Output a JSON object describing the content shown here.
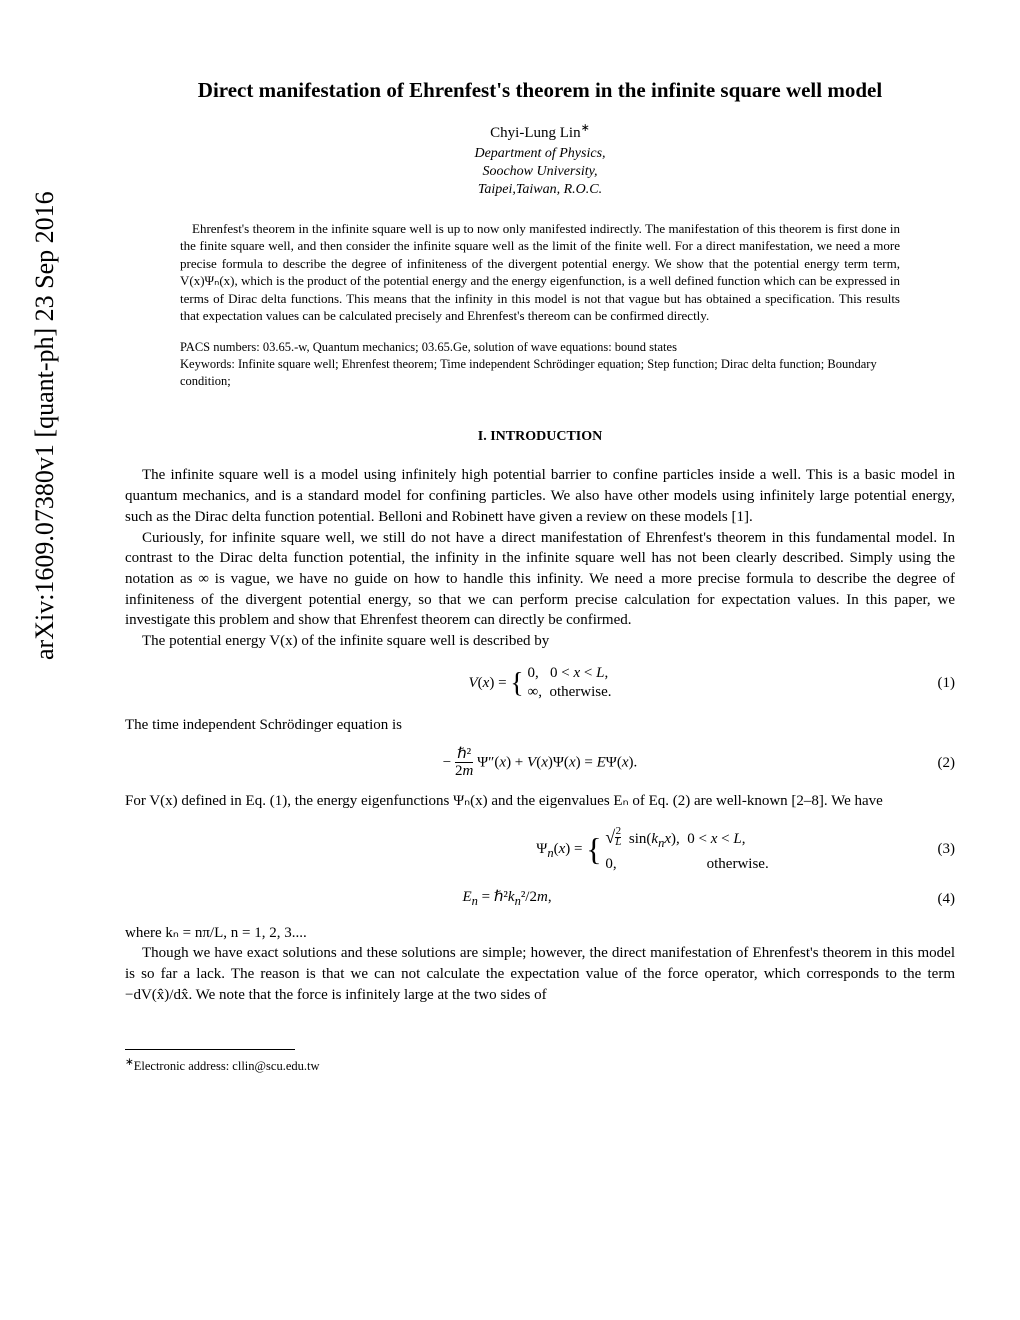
{
  "arxiv_stamp": "arXiv:1609.07380v1  [quant-ph]  23 Sep 2016",
  "title": "Direct manifestation of Ehrenfest's theorem in the infinite square well model",
  "author": "Chyi-Lung Lin",
  "author_marker": "∗",
  "affiliation": {
    "line1": "Department  of  Physics,",
    "line2": "Soochow   University,",
    "line3": "Taipei,Taiwan,   R.O.C."
  },
  "abstract": "Ehrenfest's theorem in the infinite square well is up to now only manifested indirectly. The manifestation of this theorem is first done in the finite square well, and then consider the infinite square well as the limit of the finite well. For a direct manifestation, we need a more precise formula to describe the degree of infiniteness of the divergent potential energy. We show that the potential energy term term, V(x)Ψₙ(x), which is the product of the potential energy and the energy eigenfunction, is a well defined function which can be expressed in terms of Dirac delta functions. This means that the infinity in this model is not that vague but has obtained a specification. This results that expectation values can be calculated precisely and Ehrenfest's thereom can be confirmed directly.",
  "pacs": "PACS numbers: 03.65.-w, Quantum mechanics; 03.65.Ge, solution of wave equations: bound states",
  "keywords": "Keywords: Infinite square well; Ehrenfest theorem; Time independent Schrödinger equation; Step function; Dirac delta function; Boundary condition;",
  "section_heading": "I.    INTRODUCTION",
  "para1": "The infinite square well is a model using infinitely high potential barrier to confine particles inside a well. This is a basic model in quantum mechanics, and is a standard model for confining particles. We also have other models using infinitely large potential energy, such as the Dirac delta function potential. Belloni and Robinett have given a review on these models [1].",
  "para2": "Curiously, for infinite square well, we still do not have a direct manifestation of Ehrenfest's theorem in this fundamental model. In contrast to the Dirac delta function potential, the infinity in the infinite square well has not been clearly described. Simply using the notation as ∞ is vague, we have no guide on how to handle this infinity. We need a more precise formula to describe the degree of infiniteness of the divergent potential energy, so that we can perform precise calculation for expectation values. In this paper, we investigate this problem and show that Ehrenfest theorem can directly be confirmed.",
  "para3_intro": "The potential energy V(x) of the infinite square well is described by",
  "eq1_html": "<span class='math-i'>V</span>(<span class='math-i'>x</span>) = <span style='font-size:28px;display:inline-block;vertical-align:middle;line-height:0.9'>{</span> <span style='display:inline-block;vertical-align:middle;text-align:left;line-height:1.3'>0, &nbsp;&nbsp;0 &lt; <span class='math-i'>x</span> &lt; <span class='math-i'>L</span>,<br>∞, &nbsp;otherwise.</span>",
  "eq1_num": "(1)",
  "para4": "The time independent Schrödinger equation is",
  "eq2_html": "− <span style='display:inline-block;vertical-align:middle;text-align:center;line-height:1'><span style='display:block;border-bottom:1px solid #000;padding:0 2px'>ℏ²</span><span style='display:block;padding-top:1px'>2<span class='math-i'>m</span></span></span> Ψ″(<span class='math-i'>x</span>) + <span class='math-i'>V</span>(<span class='math-i'>x</span>)Ψ(<span class='math-i'>x</span>) = <span class='math-i'>E</span>Ψ(<span class='math-i'>x</span>).",
  "eq2_num": "(2)",
  "para5": "For V(x) defined in Eq. (1), the energy eigenfunctions Ψₙ(x) and the eigenvalues Eₙ of Eq. (2) are well-known [2–8]. We have",
  "eq3_html": "Ψ<sub><span class='math-i'>n</span></sub>(<span class='math-i'>x</span>) = <span style='font-size:32px;display:inline-block;vertical-align:middle;line-height:0.85'>{</span> <span style='display:inline-block;vertical-align:middle;text-align:left;line-height:1.5'><span style='font-size:18px'>√</span><span style='text-decoration:overline;display:inline-block;vertical-align:middle;'><span style='display:inline-block;text-align:center;line-height:0.9;font-size:11px'><span style='display:block;border-bottom:1px solid #000'>2</span><span style='display:block;font-style:italic'>L</span></span></span>&nbsp; sin(<span class='math-i'>k<sub>n</sub>x</span>), &nbsp;0 &lt; <span class='math-i'>x</span> &lt; <span class='math-i'>L</span>,<br>0,&nbsp;&nbsp;&nbsp;&nbsp;&nbsp;&nbsp;&nbsp;&nbsp;&nbsp;&nbsp;&nbsp;&nbsp;&nbsp;&nbsp;&nbsp;&nbsp;&nbsp;&nbsp;&nbsp;&nbsp;&nbsp;&nbsp;&nbsp;&nbsp;otherwise.</span>",
  "eq3_num": "(3)",
  "eq4_html": "<span class='math-i'>E<sub>n</sub></span> = ℏ²<span class='math-i'>k</span><sub><span class='math-i'>n</span></sub>²/2<span class='math-i'>m</span>,",
  "eq4_num": "(4)",
  "para6": "where kₙ = nπ/L, n = 1, 2, 3....",
  "para7": "Though we have exact solutions and these solutions are simple; however, the direct manifestation of Ehrenfest's theorem in this model is so far a lack. The reason is that we can not calculate the expectation value of the force operator, which corresponds to the term −dV(x̂)/dx̂. We note that the force is infinitely large at the two sides of",
  "footnote": "Electronic address: cllin@scu.edu.tw",
  "footnote_marker": "∗"
}
